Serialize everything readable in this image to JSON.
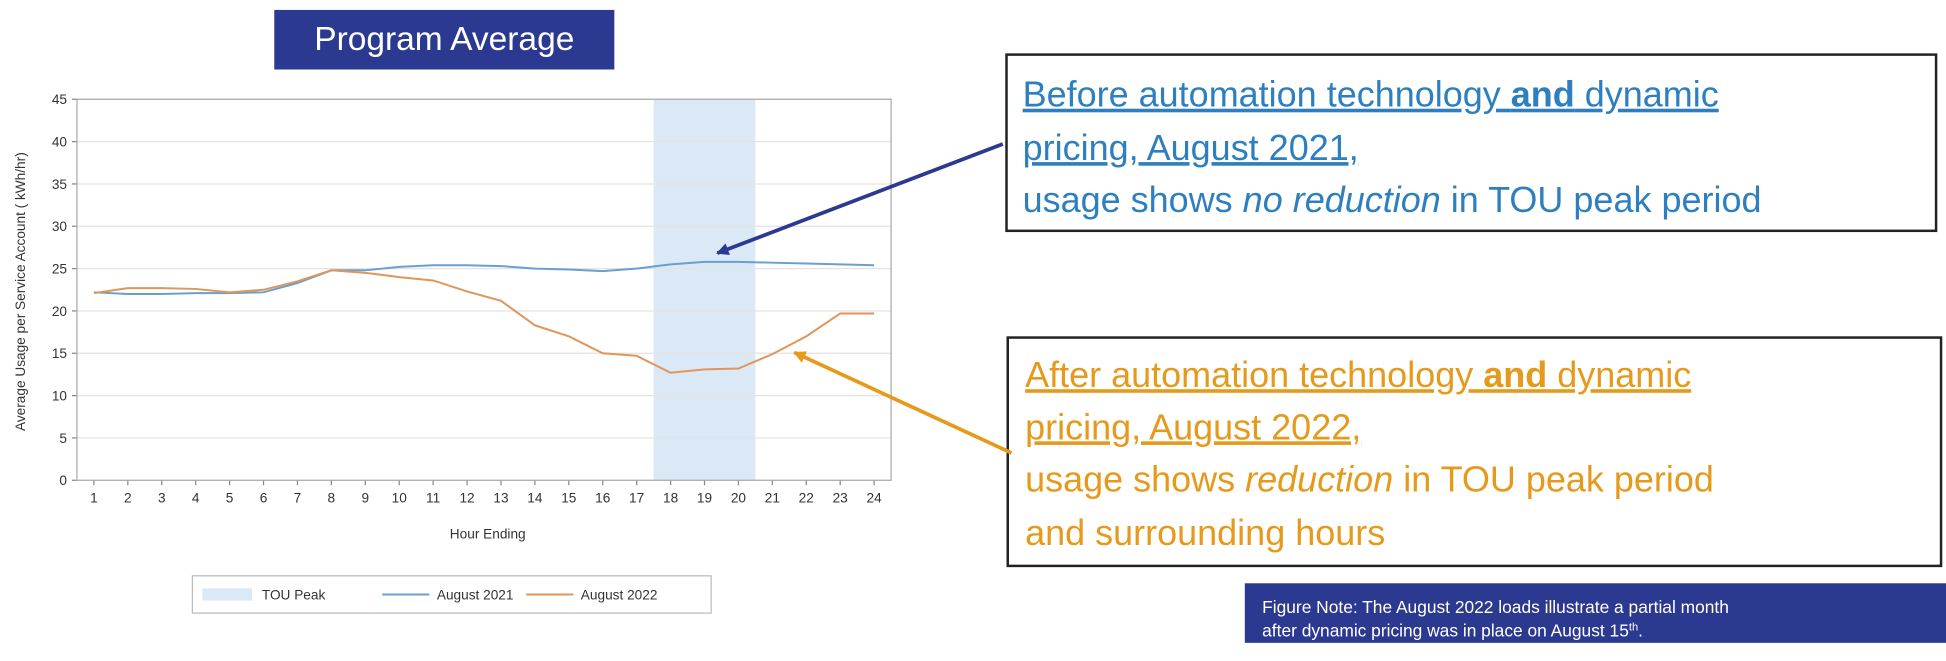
{
  "chart_data": {
    "type": "line",
    "title": "Program Average",
    "x_label": "Hour Ending",
    "y_label": "Average Usage per Service Account ( kWh/hr)",
    "x": [
      1,
      2,
      3,
      4,
      5,
      6,
      7,
      8,
      9,
      10,
      11,
      12,
      13,
      14,
      15,
      16,
      17,
      18,
      19,
      20,
      21,
      22,
      23,
      24
    ],
    "xlim": [
      0.5,
      24.5
    ],
    "xticks": [
      1,
      2,
      3,
      4,
      5,
      6,
      7,
      8,
      9,
      10,
      11,
      12,
      13,
      14,
      15,
      16,
      17,
      18,
      19,
      20,
      21,
      22,
      23,
      24
    ],
    "ylim": [
      0,
      45
    ],
    "yticks": [
      0,
      5,
      10,
      15,
      20,
      25,
      30,
      35,
      40,
      45
    ],
    "grid": true,
    "band": {
      "name": "TOU Peak",
      "color": "#dbe9f6",
      "range": [
        17.5,
        20.5
      ]
    },
    "series": [
      {
        "name": "August 2021",
        "color": "#6a9fd0",
        "values": [
          22.2,
          22.0,
          22.0,
          22.1,
          22.1,
          22.2,
          23.3,
          24.8,
          24.8,
          25.2,
          25.4,
          25.4,
          25.3,
          25.0,
          24.9,
          24.7,
          25.0,
          25.5,
          25.8,
          25.8,
          25.7,
          25.6,
          25.5,
          25.4
        ]
      },
      {
        "name": "August 2022",
        "color": "#e0955a",
        "values": [
          22.1,
          22.7,
          22.7,
          22.6,
          22.2,
          22.5,
          23.5,
          24.8,
          24.5,
          24.0,
          23.6,
          22.3,
          21.2,
          18.3,
          17.0,
          15.0,
          14.7,
          12.7,
          13.1,
          13.2,
          14.9,
          17.0,
          19.7,
          19.7
        ]
      }
    ]
  },
  "before_note": {
    "lines": [
      [
        "Before automation technology ",
        "and",
        " dynamic"
      ],
      [
        "pricing, August 2021,"
      ],
      [
        "usage shows ",
        "no reduction",
        " in TOU peak period"
      ]
    ]
  },
  "after_note": {
    "lines": [
      [
        "After automation technology ",
        "and",
        " dynamic"
      ],
      [
        "pricing, August 2022,"
      ],
      [
        "usage shows ",
        "reduction",
        " in TOU peak period"
      ],
      [
        "and surrounding hours"
      ]
    ]
  },
  "figure_note": {
    "lines": [
      [
        "Figure Note: The August 2022 loads illustrate a partial month"
      ],
      [
        "after dynamic pricing was in place on August 15",
        "th",
        "."
      ]
    ]
  }
}
